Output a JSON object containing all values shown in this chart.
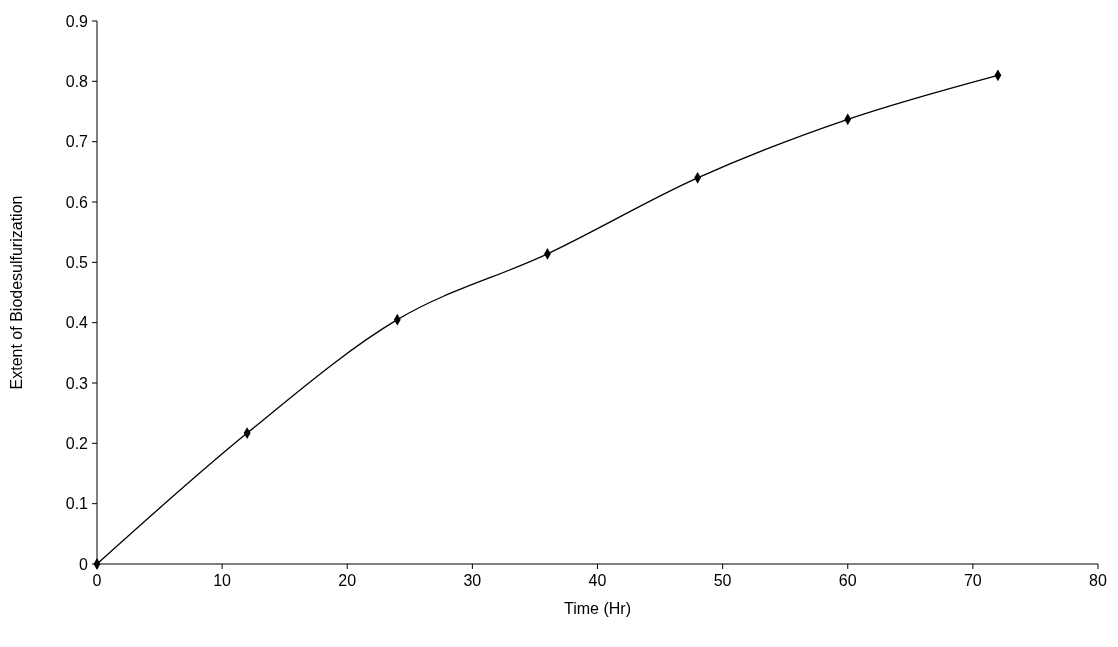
{
  "chart_data": {
    "type": "line",
    "xlabel": "Time (Hr)",
    "ylabel": "Extent of Biodesulfurization",
    "x": [
      0,
      12,
      24,
      36,
      48,
      60,
      72
    ],
    "series": [
      {
        "color": "#000000",
        "values": [
          0,
          0.217,
          0.405,
          0.514,
          0.64,
          0.737,
          0.81
        ]
      }
    ],
    "xlim": [
      0,
      80
    ],
    "xticks": [
      0,
      10,
      20,
      30,
      40,
      50,
      60,
      70,
      80
    ],
    "ylim": [
      0,
      0.9
    ],
    "yticks": [
      0,
      0.1,
      0.2,
      0.3,
      0.4,
      0.5,
      0.6,
      0.7,
      0.8,
      0.9
    ],
    "grid": false,
    "marker": "diamond",
    "line_style": "solid"
  }
}
